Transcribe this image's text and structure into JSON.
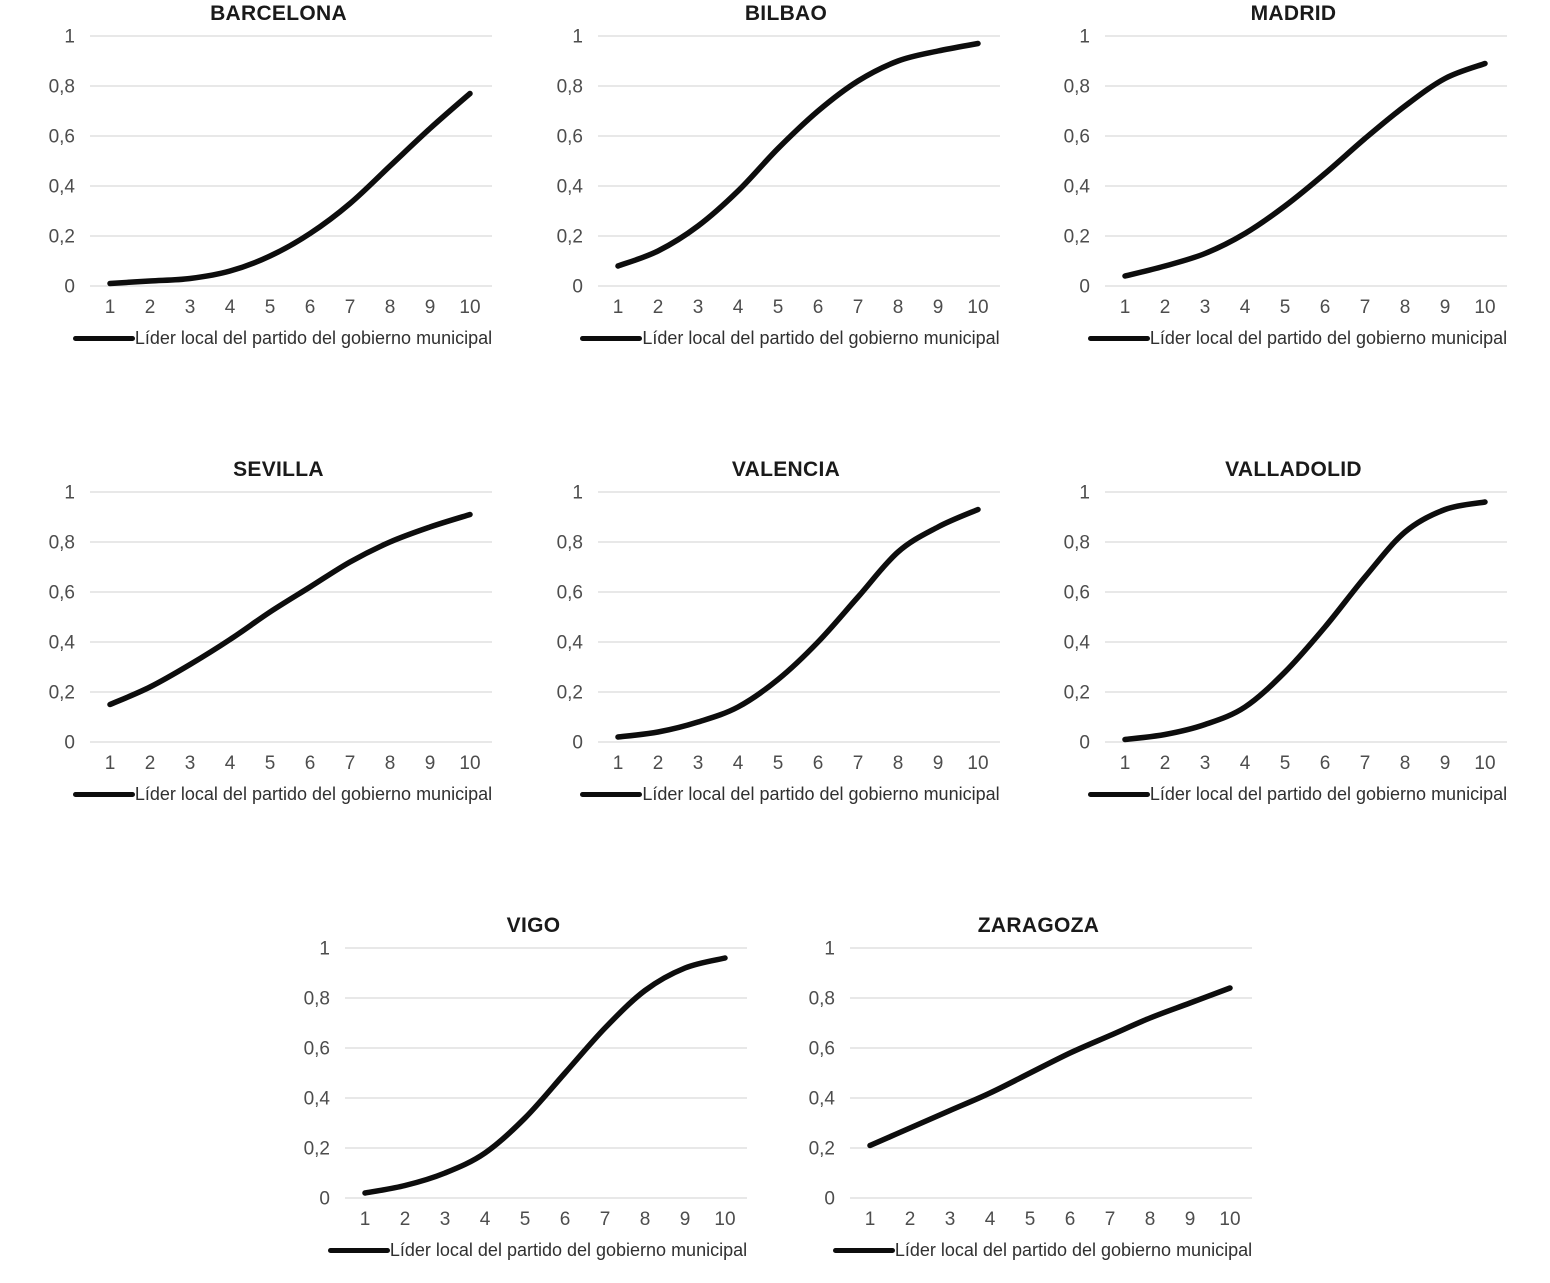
{
  "colors": {
    "line": "#0d0d0d",
    "grid": "#d9d9d9",
    "tick_label": "#4d4d4d",
    "title": "#1a1a1a"
  },
  "legend_label": "Líder local del partido del gobierno municipal",
  "chart_data": [
    {
      "type": "line",
      "title": "BARCELONA",
      "x": [
        1,
        2,
        3,
        4,
        5,
        6,
        7,
        8,
        9,
        10
      ],
      "xlabel": "",
      "ylabel": "",
      "ylim": [
        0,
        1
      ],
      "yticks": [
        0,
        0.2,
        0.4,
        0.6,
        0.8,
        1
      ],
      "ytick_labels": [
        "0",
        "0,2",
        "0,4",
        "0,6",
        "0,8",
        "1"
      ],
      "grid": true,
      "legend_position": "bottom",
      "series": [
        {
          "name": "Líder local del partido del gobierno municipal",
          "values": [
            0.01,
            0.02,
            0.03,
            0.06,
            0.12,
            0.21,
            0.33,
            0.48,
            0.63,
            0.77
          ]
        }
      ]
    },
    {
      "type": "line",
      "title": "BILBAO",
      "x": [
        1,
        2,
        3,
        4,
        5,
        6,
        7,
        8,
        9,
        10
      ],
      "xlabel": "",
      "ylabel": "",
      "ylim": [
        0,
        1
      ],
      "yticks": [
        0,
        0.2,
        0.4,
        0.6,
        0.8,
        1
      ],
      "ytick_labels": [
        "0",
        "0,2",
        "0,4",
        "0,6",
        "0,8",
        "1"
      ],
      "grid": true,
      "legend_position": "bottom",
      "series": [
        {
          "name": "Líder local del partido del gobierno municipal",
          "values": [
            0.08,
            0.14,
            0.24,
            0.38,
            0.55,
            0.7,
            0.82,
            0.9,
            0.94,
            0.97
          ]
        }
      ]
    },
    {
      "type": "line",
      "title": "MADRID",
      "x": [
        1,
        2,
        3,
        4,
        5,
        6,
        7,
        8,
        9,
        10
      ],
      "xlabel": "",
      "ylabel": "",
      "ylim": [
        0,
        1
      ],
      "yticks": [
        0,
        0.2,
        0.4,
        0.6,
        0.8,
        1
      ],
      "ytick_labels": [
        "0",
        "0,2",
        "0,4",
        "0,6",
        "0,8",
        "1"
      ],
      "grid": true,
      "legend_position": "bottom",
      "series": [
        {
          "name": "Líder local del partido del gobierno municipal",
          "values": [
            0.04,
            0.08,
            0.13,
            0.21,
            0.32,
            0.45,
            0.59,
            0.72,
            0.83,
            0.89
          ]
        }
      ]
    },
    {
      "type": "line",
      "title": "SEVILLA",
      "x": [
        1,
        2,
        3,
        4,
        5,
        6,
        7,
        8,
        9,
        10
      ],
      "xlabel": "",
      "ylabel": "",
      "ylim": [
        0,
        1
      ],
      "yticks": [
        0,
        0.2,
        0.4,
        0.6,
        0.8,
        1
      ],
      "ytick_labels": [
        "0",
        "0,2",
        "0,4",
        "0,6",
        "0,8",
        "1"
      ],
      "grid": true,
      "legend_position": "bottom",
      "series": [
        {
          "name": "Líder local del partido del gobierno municipal",
          "values": [
            0.15,
            0.22,
            0.31,
            0.41,
            0.52,
            0.62,
            0.72,
            0.8,
            0.86,
            0.91
          ]
        }
      ]
    },
    {
      "type": "line",
      "title": "VALENCIA",
      "x": [
        1,
        2,
        3,
        4,
        5,
        6,
        7,
        8,
        9,
        10
      ],
      "xlabel": "",
      "ylabel": "",
      "ylim": [
        0,
        1
      ],
      "yticks": [
        0,
        0.2,
        0.4,
        0.6,
        0.8,
        1
      ],
      "ytick_labels": [
        "0",
        "0,2",
        "0,4",
        "0,6",
        "0,8",
        "1"
      ],
      "grid": true,
      "legend_position": "bottom",
      "series": [
        {
          "name": "Líder local del partido del gobierno municipal",
          "values": [
            0.02,
            0.04,
            0.08,
            0.14,
            0.25,
            0.4,
            0.58,
            0.76,
            0.86,
            0.93
          ]
        }
      ]
    },
    {
      "type": "line",
      "title": "VALLADOLID",
      "x": [
        1,
        2,
        3,
        4,
        5,
        6,
        7,
        8,
        9,
        10
      ],
      "xlabel": "",
      "ylabel": "",
      "ylim": [
        0,
        1
      ],
      "yticks": [
        0,
        0.2,
        0.4,
        0.6,
        0.8,
        1
      ],
      "ytick_labels": [
        "0",
        "0,2",
        "0,4",
        "0,6",
        "0,8",
        "1"
      ],
      "grid": true,
      "legend_position": "bottom",
      "series": [
        {
          "name": "Líder local del partido del gobierno municipal",
          "values": [
            0.01,
            0.03,
            0.07,
            0.14,
            0.28,
            0.46,
            0.66,
            0.84,
            0.93,
            0.96
          ]
        }
      ]
    },
    {
      "type": "line",
      "title": "VIGO",
      "x": [
        1,
        2,
        3,
        4,
        5,
        6,
        7,
        8,
        9,
        10
      ],
      "xlabel": "",
      "ylabel": "",
      "ylim": [
        0,
        1
      ],
      "yticks": [
        0,
        0.2,
        0.4,
        0.6,
        0.8,
        1
      ],
      "ytick_labels": [
        "0",
        "0,2",
        "0,4",
        "0,6",
        "0,8",
        "1"
      ],
      "grid": true,
      "legend_position": "bottom",
      "series": [
        {
          "name": "Líder local del partido del gobierno municipal",
          "values": [
            0.02,
            0.05,
            0.1,
            0.18,
            0.32,
            0.5,
            0.68,
            0.83,
            0.92,
            0.96
          ]
        }
      ]
    },
    {
      "type": "line",
      "title": "ZARAGOZA",
      "x": [
        1,
        2,
        3,
        4,
        5,
        6,
        7,
        8,
        9,
        10
      ],
      "xlabel": "",
      "ylabel": "",
      "ylim": [
        0,
        1
      ],
      "yticks": [
        0,
        0.2,
        0.4,
        0.6,
        0.8,
        1
      ],
      "ytick_labels": [
        "0",
        "0,2",
        "0,4",
        "0,6",
        "0,8",
        "1"
      ],
      "grid": true,
      "legend_position": "bottom",
      "series": [
        {
          "name": "Líder local del partido del gobierno municipal",
          "values": [
            0.21,
            0.28,
            0.35,
            0.42,
            0.5,
            0.58,
            0.65,
            0.72,
            0.78,
            0.84
          ]
        }
      ]
    }
  ]
}
